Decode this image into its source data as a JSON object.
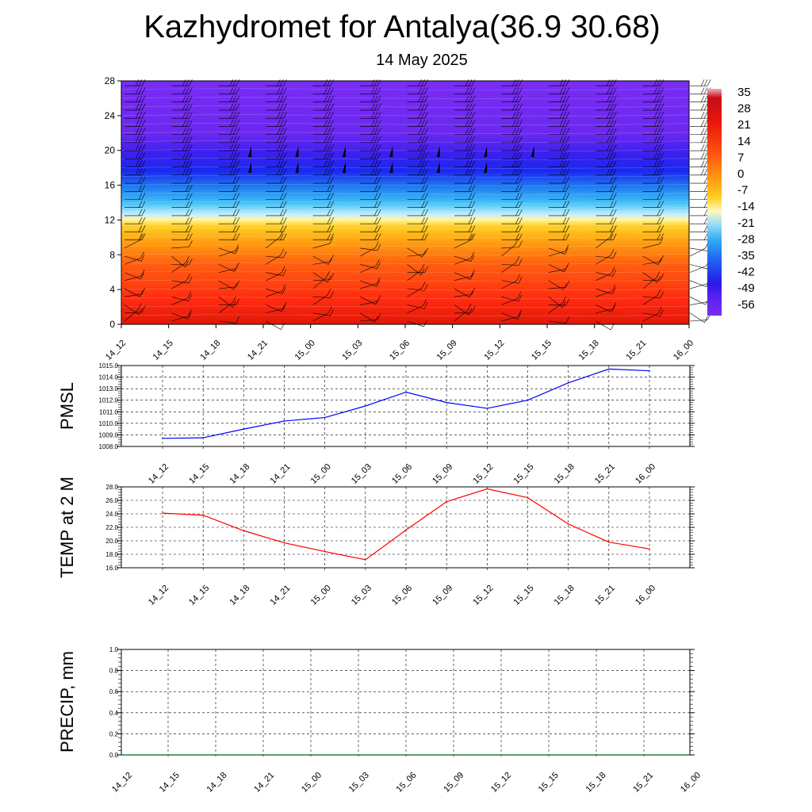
{
  "header": {
    "title": "Kazhydromet for Antalya(36.9 30.68)",
    "subtitle": "14 May 2025"
  },
  "chart_data": [
    {
      "type": "heatmap",
      "title": "",
      "time_labels": [
        "14_12",
        "14_15",
        "14_18",
        "14_21",
        "15_00",
        "15_03",
        "15_06",
        "15_09",
        "15_12",
        "15_15",
        "15_18",
        "15_21",
        "16_00"
      ],
      "y_ticks": [
        "0",
        "4",
        "8",
        "12",
        "16",
        "20",
        "24",
        "28"
      ],
      "ylim": [
        0,
        28
      ],
      "colorbar_labels": [
        "35",
        "28",
        "21",
        "14",
        "7",
        "0",
        "-7",
        "-14",
        "-21",
        "-28",
        "-35",
        "-42",
        "-49",
        "-56"
      ],
      "colorbar_range": [
        -56,
        35
      ],
      "wind_barbs": true
    },
    {
      "type": "line",
      "ylabel": "PMSL",
      "x": [
        "14_12",
        "14_15",
        "14_18",
        "14_21",
        "15_00",
        "15_03",
        "15_06",
        "15_09",
        "15_12",
        "15_15",
        "15_18",
        "15_21",
        "16_00"
      ],
      "y_ticks": [
        "1008.0",
        "1009.0",
        "1010.0",
        "1011.0",
        "1012.0",
        "1013.0",
        "1014.0",
        "1015.0"
      ],
      "ylim": [
        1008.0,
        1015.0
      ],
      "series": [
        {
          "values": [
            1008.7,
            1008.75,
            1009.5,
            1010.2,
            1010.5,
            1011.5,
            1012.7,
            1011.8,
            1011.3,
            1012.0,
            1013.5,
            1014.7,
            1014.55
          ],
          "color": "#0000ff"
        }
      ],
      "grid": true
    },
    {
      "type": "line",
      "ylabel": "TEMP at 2 M",
      "x": [
        "14_12",
        "14_15",
        "14_18",
        "14_21",
        "15_00",
        "15_03",
        "15_06",
        "15_09",
        "15_12",
        "15_15",
        "15_18",
        "15_21",
        "16_00"
      ],
      "y_ticks": [
        "16.0",
        "18.0",
        "20.0",
        "22.0",
        "24.0",
        "26.0",
        "28.0"
      ],
      "ylim": [
        16.0,
        28.0
      ],
      "series": [
        {
          "values": [
            24.1,
            23.8,
            21.5,
            19.7,
            18.4,
            17.2,
            21.6,
            25.8,
            27.7,
            26.4,
            22.5,
            19.8,
            18.8
          ],
          "color": "#ff0000"
        }
      ],
      "grid": true
    },
    {
      "type": "line",
      "ylabel": "PRECIP, mm",
      "x": [
        "14_12",
        "14_15",
        "14_18",
        "14_21",
        "15_00",
        "15_03",
        "15_06",
        "15_09",
        "15_12",
        "15_15",
        "15_18",
        "15_21",
        "16_00"
      ],
      "y_ticks": [
        "0.0",
        "0.2",
        "0.4",
        "0.6",
        "0.8",
        "1.0"
      ],
      "ylim": [
        0.0,
        1.0
      ],
      "series": [
        {
          "values": [
            0,
            0,
            0,
            0,
            0,
            0,
            0,
            0,
            0,
            0,
            0,
            0,
            0
          ],
          "color": "#006400"
        }
      ],
      "grid": true
    }
  ]
}
